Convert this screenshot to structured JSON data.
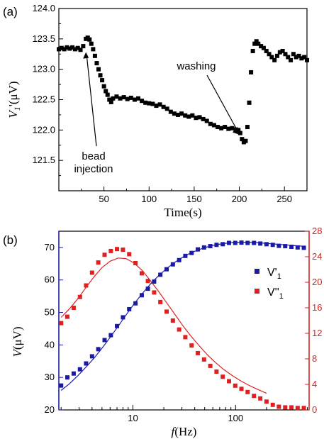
{
  "chart_data": [
    {
      "panel_label": "(a)",
      "type": "scatter",
      "xlabel": "Time(s)",
      "ylabel_main": "V",
      "ylabel_sub": "1",
      "ylabel_rest": "'(μV)",
      "xlim": [
        0,
        275
      ],
      "ylim": [
        121.0,
        124.0
      ],
      "xticks": [
        "50",
        "100",
        "150",
        "200",
        "250"
      ],
      "yticks": [
        "121.5",
        "122.0",
        "122.5",
        "123.0",
        "123.5",
        "124.0"
      ],
      "annotations": [
        {
          "text1": "bead",
          "text2": "injection",
          "at_x": 30,
          "at_y": 123.35
        },
        {
          "text1": "washing",
          "text2": "",
          "at_x": 202,
          "at_y": 121.88
        }
      ],
      "series": [
        {
          "color": "#000000",
          "marker": "square",
          "x": [
            0,
            3,
            6,
            9,
            12,
            15,
            18,
            21,
            24,
            27,
            30,
            32,
            34,
            36,
            38,
            40,
            42,
            44,
            46,
            48,
            50,
            52,
            54,
            56,
            58,
            60,
            64,
            68,
            72,
            76,
            80,
            84,
            88,
            92,
            96,
            100,
            104,
            108,
            112,
            116,
            120,
            124,
            128,
            132,
            136,
            140,
            144,
            148,
            152,
            156,
            160,
            164,
            168,
            172,
            176,
            180,
            184,
            188,
            192,
            196,
            199,
            201,
            203,
            205,
            207,
            209,
            211,
            213,
            215,
            217,
            219,
            221,
            224,
            227,
            230,
            233,
            236,
            239,
            242,
            245,
            248,
            251,
            254,
            257,
            260,
            263,
            266,
            269,
            272,
            275
          ],
          "y": [
            123.33,
            123.35,
            123.33,
            123.36,
            123.34,
            123.36,
            123.33,
            123.35,
            123.32,
            123.38,
            123.5,
            123.52,
            123.49,
            123.42,
            123.33,
            123.22,
            123.1,
            123.0,
            122.9,
            122.82,
            122.72,
            122.64,
            122.58,
            122.5,
            122.46,
            122.52,
            122.55,
            122.52,
            122.54,
            122.51,
            122.53,
            122.5,
            122.52,
            122.48,
            122.45,
            122.44,
            122.43,
            122.4,
            122.42,
            122.38,
            122.35,
            122.3,
            122.27,
            122.25,
            122.27,
            122.24,
            122.22,
            122.24,
            122.2,
            122.21,
            122.18,
            122.15,
            122.1,
            122.08,
            122.05,
            122.03,
            122.05,
            122.02,
            122.03,
            122.01,
            122.0,
            121.95,
            121.85,
            121.8,
            121.82,
            122.05,
            122.45,
            122.95,
            123.3,
            123.42,
            123.46,
            123.42,
            123.38,
            123.35,
            123.3,
            123.25,
            123.2,
            123.15,
            123.22,
            123.28,
            123.3,
            123.25,
            123.2,
            123.15,
            123.25,
            123.2,
            123.22,
            123.18,
            123.2,
            123.15
          ]
        }
      ]
    },
    {
      "panel_label": "(b)",
      "type": "scatter",
      "xlabel_main": "f",
      "xlabel_rest": "(Hz)",
      "ylabel_main": "V",
      "ylabel_rest": "(μV)",
      "xscale": "log",
      "xlim": [
        1.9,
        520
      ],
      "ylim_left": [
        20,
        75
      ],
      "ylim_right": [
        0,
        28
      ],
      "xtick_values": [
        10,
        100
      ],
      "xtick_labels": [
        "10",
        "100"
      ],
      "yticks_left": [
        "20",
        "30",
        "40",
        "50",
        "60",
        "70"
      ],
      "yticks_right": [
        "0",
        "4",
        "8",
        "12",
        "16",
        "20",
        "24",
        "28"
      ],
      "legend_position": "right",
      "series": [
        {
          "name_main": "V'",
          "name_sub": "1",
          "axis": "left",
          "color": "#1a1aa6",
          "marker": "square",
          "x": [
            2,
            2.3,
            2.65,
            3.05,
            3.5,
            4.0,
            4.6,
            5.3,
            6.1,
            7.0,
            8.0,
            9.2,
            10.6,
            12.2,
            14.0,
            16.1,
            18.5,
            21.3,
            24.5,
            28.2,
            32.4,
            37.3,
            42.9,
            49.3,
            56.7,
            65.2,
            75,
            86.3,
            99.2,
            114,
            131,
            151,
            174,
            200,
            230,
            264,
            304,
            350,
            402,
            462
          ],
          "y": [
            27.5,
            30.0,
            31.2,
            32.5,
            34.3,
            36.5,
            38.7,
            41.5,
            43.0,
            45.8,
            48.5,
            51.0,
            52.8,
            55.3,
            57.3,
            59.5,
            61.6,
            63.3,
            64.8,
            66.1,
            67.4,
            68.3,
            69.4,
            70.0,
            70.4,
            70.8,
            71.0,
            71.4,
            71.4,
            71.5,
            71.4,
            71.4,
            71.2,
            71.0,
            70.8,
            70.5,
            70.4,
            70.2,
            70.0,
            69.9
          ],
          "fit_x": [
            2,
            2.4,
            2.9,
            3.5,
            4.2,
            5,
            6,
            7.2,
            8.6,
            10.3,
            12.4,
            14.9,
            17.9,
            21.5,
            25.8,
            31,
            37,
            44.5,
            53.4,
            64,
            77,
            92.3,
            111,
            133,
            160,
            192,
            230,
            276,
            331,
            400,
            480
          ],
          "fit_y": [
            26.0,
            28.0,
            30.5,
            33.2,
            36.0,
            39.0,
            42.3,
            45.8,
            49.3,
            52.7,
            55.9,
            58.8,
            61.4,
            63.6,
            65.5,
            67.1,
            68.4,
            69.4,
            70.2,
            70.8,
            71.2,
            71.5,
            71.6,
            71.6,
            71.5,
            71.3,
            71.1,
            70.9,
            70.7,
            70.5,
            70.3
          ]
        },
        {
          "name_main": "V''",
          "name_sub": "1",
          "axis": "right",
          "color": "#e02020",
          "marker": "square",
          "x": [
            2,
            2.3,
            2.65,
            3.05,
            3.5,
            4.0,
            4.6,
            5.3,
            6.1,
            7.0,
            8.0,
            9.2,
            10.6,
            12.2,
            14.0,
            16.1,
            18.5,
            21.3,
            24.5,
            28.2,
            32.4,
            37.3,
            42.9,
            49.3,
            56.7,
            65.2,
            75,
            86.3,
            99.2,
            114,
            131,
            151,
            174,
            200,
            230,
            264,
            304,
            350,
            402,
            462
          ],
          "y": [
            13.6,
            14.6,
            16.0,
            17.7,
            19.5,
            21.5,
            23.1,
            24.3,
            24.9,
            25.2,
            25.1,
            24.4,
            23.0,
            21.4,
            20.2,
            18.4,
            16.9,
            15.4,
            14.0,
            12.6,
            11.4,
            10.1,
            8.9,
            7.9,
            6.9,
            6.0,
            5.2,
            4.5,
            3.8,
            3.3,
            2.8,
            2.2,
            1.8,
            1.3,
            0.8,
            0.5,
            0.4,
            0.4,
            0.3,
            0.3
          ],
          "fit_x": [
            2,
            2.4,
            2.9,
            3.5,
            4.2,
            5,
            6,
            7.2,
            8.6,
            10.3,
            12.4,
            14.9,
            17.9,
            21.5,
            25.8,
            31,
            37,
            44.5,
            53.4,
            64,
            77,
            92.3,
            111,
            133,
            160,
            200
          ],
          "fit_y": [
            14.5,
            15.8,
            17.4,
            19.2,
            20.9,
            22.3,
            23.3,
            23.8,
            23.7,
            23.0,
            21.8,
            20.2,
            18.5,
            16.7,
            14.9,
            13.1,
            11.5,
            10.0,
            8.6,
            7.4,
            6.3,
            5.4,
            4.6,
            3.9,
            3.3,
            2.6
          ]
        }
      ]
    }
  ]
}
